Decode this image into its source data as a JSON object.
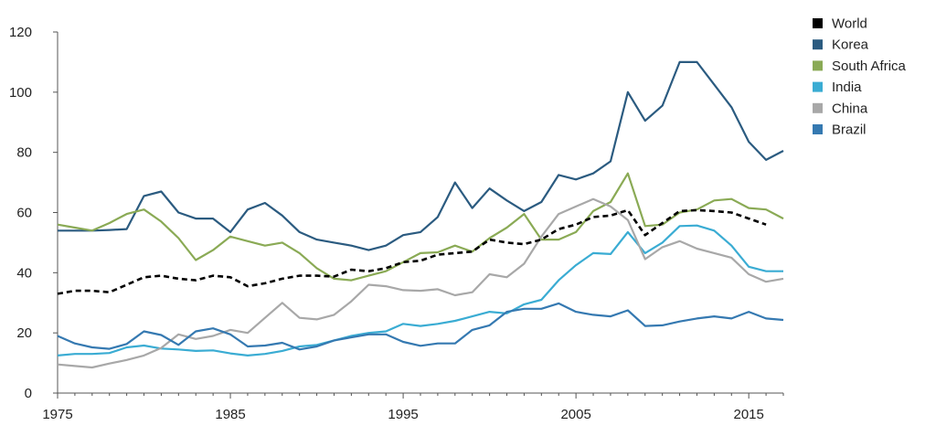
{
  "chart_data": {
    "type": "line",
    "title": "",
    "xlabel": "",
    "ylabel": "",
    "xlim": [
      1975,
      2017
    ],
    "ylim": [
      0,
      120
    ],
    "yticks": [
      0,
      20,
      40,
      60,
      80,
      100,
      120
    ],
    "xticks": [
      1975,
      1985,
      1995,
      2005,
      2015
    ],
    "grid": false,
    "legend_position": "right",
    "x": [
      1975,
      1976,
      1977,
      1978,
      1979,
      1980,
      1981,
      1982,
      1983,
      1984,
      1985,
      1986,
      1987,
      1988,
      1989,
      1990,
      1991,
      1992,
      1993,
      1994,
      1995,
      1996,
      1997,
      1998,
      1999,
      2000,
      2001,
      2002,
      2003,
      2004,
      2005,
      2006,
      2007,
      2008,
      2009,
      2010,
      2011,
      2012,
      2013,
      2014,
      2015,
      2016,
      2017
    ],
    "series": [
      {
        "name": "World",
        "color": "#000000",
        "dashed": true,
        "values": [
          33,
          34,
          34,
          33.5,
          36,
          38.5,
          39,
          38,
          37.5,
          39,
          38.5,
          35.5,
          36.5,
          38,
          39,
          39,
          38.7,
          41,
          40.5,
          41.5,
          43.5,
          44,
          46,
          46.5,
          47,
          51,
          50,
          49.5,
          51,
          54.5,
          56,
          58.5,
          59,
          60.8,
          52.5,
          56.5,
          60.5,
          60.8,
          60.5,
          60,
          58,
          56,
          null
        ]
      },
      {
        "name": "Korea",
        "color": "#2b5b80",
        "dashed": false,
        "values": [
          54,
          54,
          54,
          54.2,
          54.5,
          65.5,
          67,
          60,
          58,
          58,
          53.5,
          61,
          63.2,
          59,
          53.5,
          51,
          50,
          49,
          47.5,
          49,
          52.5,
          53.5,
          58.5,
          70,
          61.5,
          68,
          64,
          60.5,
          63.5,
          72.5,
          71,
          73,
          77,
          100,
          90.5,
          95.5,
          110,
          110,
          102.5,
          95,
          83.5,
          77.5,
          80.5
        ]
      },
      {
        "name": "South Africa",
        "color": "#8aaa55",
        "dashed": false,
        "values": [
          56,
          55,
          54,
          56.5,
          59.5,
          61,
          57,
          51.5,
          44.2,
          47.5,
          52,
          50.5,
          49,
          50,
          46.5,
          41.5,
          38,
          37.5,
          39,
          40.5,
          43.5,
          46.5,
          46.8,
          49,
          47,
          51.5,
          55,
          59.5,
          51,
          51,
          53.5,
          60.5,
          63.5,
          73,
          55.5,
          56,
          60,
          61,
          64,
          64.5,
          61.5,
          61,
          58
        ]
      },
      {
        "name": "India",
        "color": "#3aacd3",
        "dashed": false,
        "values": [
          12.5,
          13,
          13,
          13.3,
          15.2,
          15.8,
          14.8,
          14.5,
          14,
          14.2,
          13.2,
          12.5,
          13,
          14,
          15.5,
          16,
          17.5,
          19,
          20,
          20.5,
          23,
          22.3,
          23,
          24,
          25.5,
          27,
          26.5,
          29.5,
          31,
          37.5,
          42.5,
          46.5,
          46.2,
          53.5,
          46.5,
          50,
          55.5,
          55.7,
          54,
          49,
          42,
          40.5,
          40.5
        ]
      },
      {
        "name": "China",
        "color": "#a8a8a8",
        "dashed": false,
        "values": [
          9.5,
          9,
          8.5,
          9.8,
          11,
          12.5,
          15,
          19.5,
          18,
          19,
          21,
          20,
          25,
          30,
          25,
          24.5,
          26,
          30.5,
          36,
          35.5,
          34.2,
          34,
          34.5,
          32.5,
          33.5,
          39.5,
          38.5,
          43,
          52,
          59.5,
          62,
          64.5,
          62,
          57.5,
          44.5,
          48.5,
          50.5,
          48,
          46.5,
          45,
          39.5,
          37,
          38
        ]
      },
      {
        "name": "Brazil",
        "color": "#3579b1",
        "dashed": false,
        "values": [
          19,
          16.5,
          15.2,
          14.7,
          16.3,
          20.5,
          19.3,
          16,
          20.5,
          21.5,
          19.5,
          15.5,
          15.8,
          16.7,
          14.5,
          15.5,
          17.5,
          18.5,
          19.5,
          19.5,
          17,
          15.7,
          16.5,
          16.5,
          21,
          22.5,
          27,
          28,
          28,
          29.8,
          27,
          26,
          25.5,
          27.5,
          22.3,
          22.5,
          23.8,
          24.8,
          25.5,
          24.8,
          27,
          24.8,
          24.3
        ]
      }
    ]
  }
}
